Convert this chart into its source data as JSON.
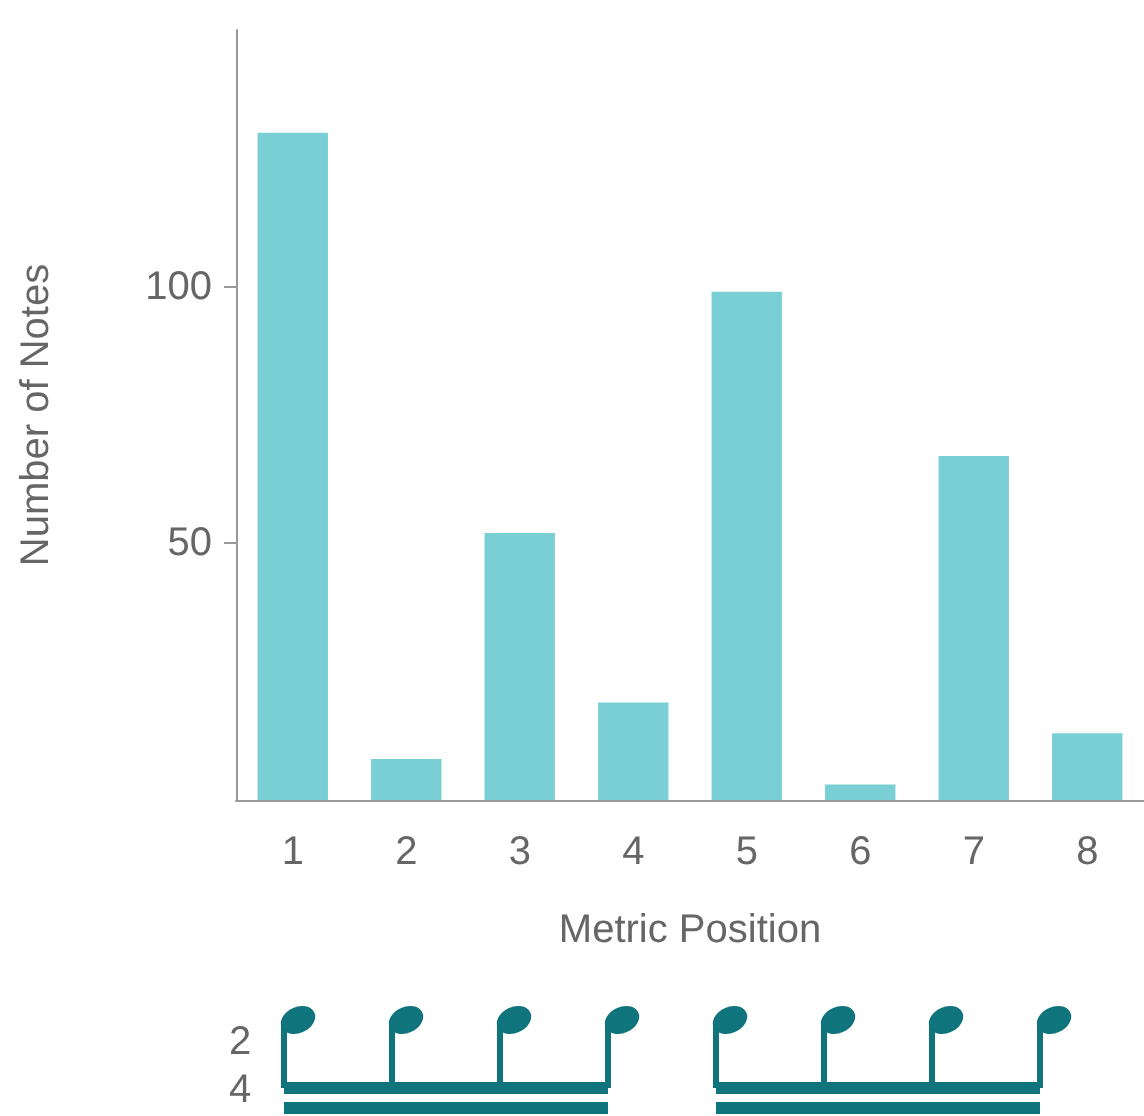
{
  "chart_data": {
    "type": "bar",
    "xlabel": "Metric Position",
    "ylabel": "Number of Notes",
    "categories": [
      "1",
      "2",
      "3",
      "4",
      "5",
      "6",
      "7",
      "8"
    ],
    "values": [
      130,
      8,
      52,
      19,
      99,
      3,
      67,
      13
    ],
    "color": "#7acfd4",
    "ylim": [
      0,
      150
    ],
    "yticks": [
      50,
      100
    ],
    "grid": false,
    "annotations": [
      "2",
      "4"
    ]
  }
}
